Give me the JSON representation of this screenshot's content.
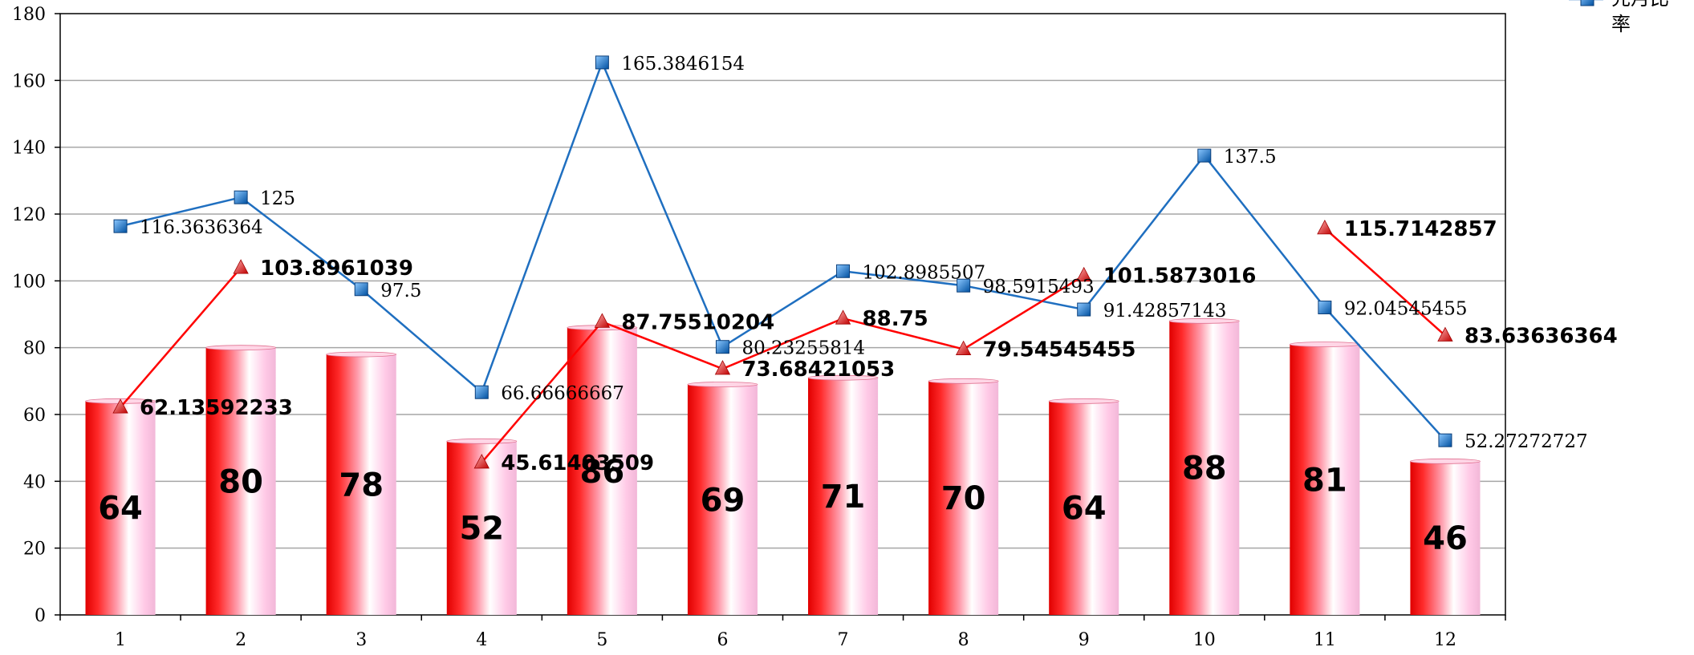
{
  "chart_data": {
    "type": "bar",
    "x": [
      1,
      2,
      3,
      4,
      5,
      6,
      7,
      8,
      9,
      10,
      11,
      12
    ],
    "ylim": [
      0,
      180
    ],
    "yticks": [
      0,
      20,
      40,
      60,
      80,
      100,
      120,
      140,
      160,
      180
    ],
    "grid": true,
    "legend_position": "top-right",
    "series": [
      {
        "kind": "bar",
        "color": "#e60000",
        "values": [
          64,
          80,
          78,
          52,
          86,
          69,
          71,
          70,
          64,
          88,
          81,
          46
        ]
      },
      {
        "kind": "line",
        "color": "#1f6fc0",
        "marker": "square",
        "name": "先月比率",
        "values": [
          116.3636364,
          125,
          97.5,
          66.66666667,
          165.3846154,
          80.23255814,
          102.8985507,
          98.5915493,
          91.42857143,
          137.5,
          92.04545455,
          52.27272727
        ],
        "labels": [
          "116.3636364",
          "125",
          "97.5",
          "66.66666667",
          "165.3846154",
          "80.23255814",
          "102.8985507",
          "98.5915493",
          "91.42857143",
          "137.5",
          "92.04545455",
          "52.27272727"
        ]
      },
      {
        "kind": "line",
        "color": "#ff0000",
        "marker": "triangle",
        "values": [
          62.13592233,
          103.8961039,
          null,
          45.61403509,
          87.75510204,
          73.68421053,
          88.75,
          79.54545455,
          101.5873016,
          null,
          115.7142857,
          83.63636364
        ],
        "labels": [
          "62.13592233",
          "103.8961039",
          "",
          "45.61403509",
          "87.75510204",
          "73.68421053",
          "88.75",
          "79.54545455",
          "101.5873016",
          "",
          "115.7142857",
          "83.63636364"
        ]
      }
    ]
  }
}
